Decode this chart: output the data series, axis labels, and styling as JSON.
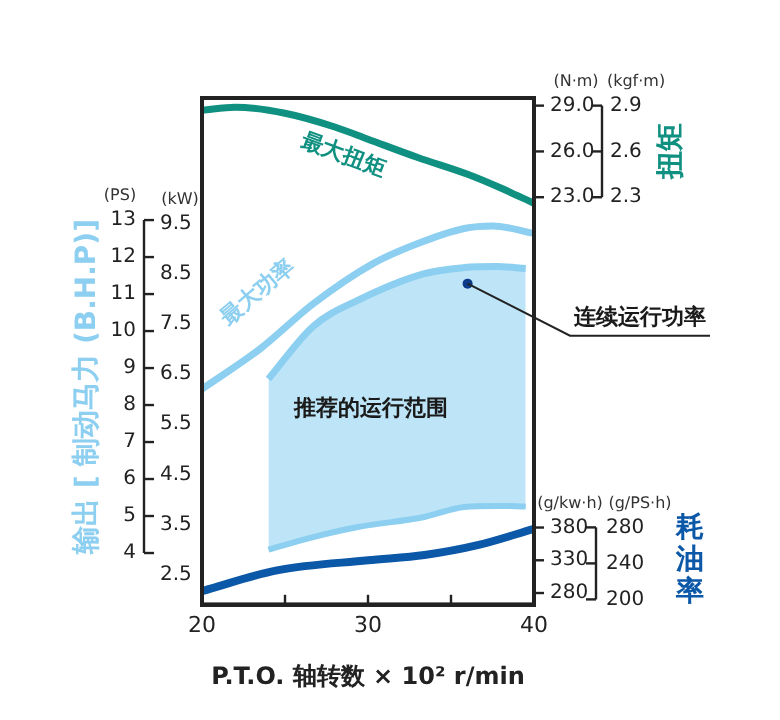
{
  "chart_data": [
    {
      "type": "line",
      "xlabel": "P.T.O. 轴转数 × 10² r/min",
      "ylabel": "(kW)",
      "y2label": "(PS)",
      "xlim": [
        20,
        40
      ],
      "xticks": [
        20,
        {
          "value": 25,
          "label": null
        },
        30,
        {
          "value": 35,
          "label": null
        },
        40
      ],
      "ylim": [
        1.9,
        12.0
      ],
      "yticks": [
        2.5,
        3.5,
        4.5,
        5.5,
        6.5,
        7.5,
        8.5,
        9.5
      ],
      "y2lim": [
        2.6,
        16.3
      ],
      "y2ticks": [
        4,
        5,
        6,
        7,
        8,
        9,
        10,
        11,
        12,
        13
      ],
      "marker": "none",
      "line_style": "solid",
      "series": [
        {
          "name": "最大功率",
          "color": "#8ccff0",
          "x": [
            20,
            23.5,
            26.7,
            30.3,
            33,
            35.8,
            37.5,
            40
          ],
          "values": [
            6.2,
            7.0,
            7.9,
            8.7,
            9.1,
            9.4,
            9.45,
            9.3
          ]
        },
        {
          "name": "推荐的运行范围",
          "color": "#8ccff0",
          "x": [
            24,
            26.7,
            29.4,
            33.4,
            35.8,
            37.8,
            39.5
          ],
          "values": [
            6.4,
            7.45,
            7.97,
            8.5,
            8.62,
            8.64,
            8.6
          ],
          "lower": [
            3.0,
            3.25,
            3.45,
            3.65,
            3.85,
            3.87,
            3.86
          ],
          "upper": [
            6.4,
            7.45,
            7.97,
            8.5,
            8.62,
            8.64,
            8.6
          ]
        }
      ],
      "annotations": [
        "输出 [ 制动马力 (B.H.P)]",
        {
          "text": "连续运行功率",
          "x": 36,
          "y": 8.3
        }
      ]
    },
    {
      "type": "line",
      "ylabel": "(N·m)",
      "y2label": "(kgf·m)",
      "xlim": [
        20,
        40
      ],
      "tick_labels": "y",
      "ylim": [
        -3.7,
        29.5
      ],
      "yticks": [
        {
          "value": 23,
          "label": "23.0"
        },
        {
          "value": 26,
          "label": "26.0"
        },
        {
          "value": 29,
          "label": "29.0"
        }
      ],
      "y2lim": [
        -0.37,
        2.95
      ],
      "y2ticks": [
        2.3,
        2.6,
        2.9
      ],
      "marker": "none",
      "line_style": "solid",
      "series": [
        {
          "name": "最大扭矩",
          "color": "#0f9080",
          "x": [
            20,
            22,
            25,
            28,
            30,
            33,
            36,
            38,
            40
          ],
          "values": [
            28.7,
            28.9,
            28.5,
            27.6,
            26.8,
            25.6,
            24.5,
            23.6,
            22.6
          ]
        }
      ],
      "annotations": [
        "扭矩"
      ]
    },
    {
      "type": "line",
      "ylabel": "(g/kw·h)",
      "y2label": "(g/PS·h)",
      "xlim": [
        20,
        40
      ],
      "tick_labels": "y",
      "ylim": [
        262,
        1036
      ],
      "yticks": [
        280,
        330,
        380
      ],
      "y2lim": [
        194,
        757
      ],
      "y2ticks": [
        200,
        240,
        280
      ],
      "marker": "none",
      "line_style": "solid",
      "series": [
        {
          "color": "#0b57a8",
          "x": [
            20,
            24.6,
            30,
            33.4,
            36.6,
            40
          ],
          "values": [
            283,
            315,
            330,
            338,
            353,
            378
          ]
        }
      ],
      "annotations": [
        "耗油率"
      ]
    }
  ]
}
